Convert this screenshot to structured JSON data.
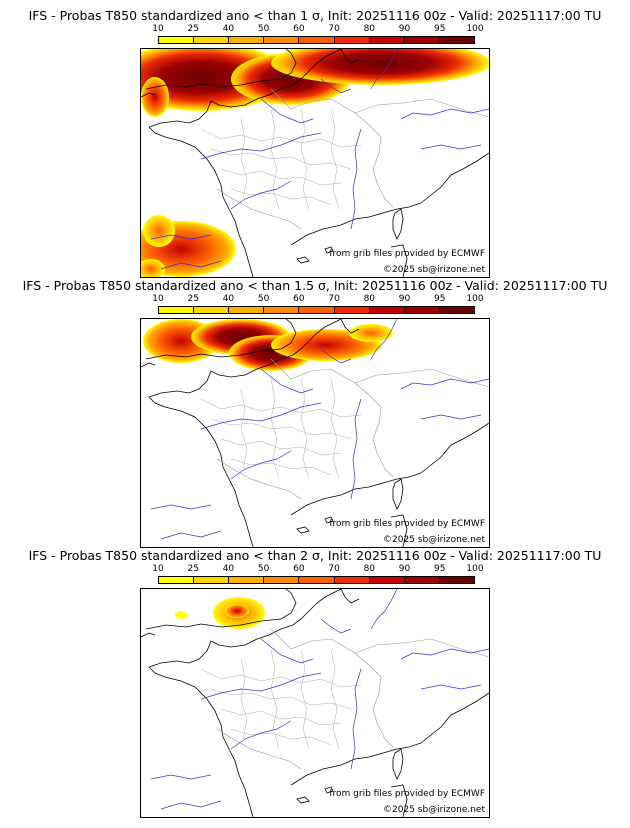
{
  "colorbar": {
    "labels": [
      "10",
      "25",
      "40",
      "50",
      "60",
      "70",
      "80",
      "90",
      "95",
      "100"
    ],
    "colors": [
      "#ffff00",
      "#ffd700",
      "#ffb000",
      "#ff8c00",
      "#ff6000",
      "#ee2c00",
      "#c40000",
      "#9b0000",
      "#6b0000"
    ]
  },
  "colors": {
    "coast": "#000000",
    "rivers": "#3333cc",
    "admin": "#999999"
  },
  "panels": [
    {
      "title": "IFS - Probas T850  standardized ano < than 1 σ, Init: 20251116 00z - Valid: 20251117:00 TU",
      "source": "from grib files provided by ECMWF",
      "copyright": "©2025 sb@irizone.net"
    },
    {
      "title": "IFS - Probas T850  standardized ano < than 1.5 σ, Init: 20251116 00z - Valid: 20251117:00 TU",
      "source": "from grib files provided by ECMWF",
      "copyright": "©2025 sb@irizone.net"
    },
    {
      "title": "IFS - Probas T850  standardized ano < than 2 σ, Init: 20251116 00z - Valid: 20251117:00 TU",
      "source": "from grib files provided by ECMWF",
      "copyright": "©2025 sb@irizone.net"
    }
  ]
}
